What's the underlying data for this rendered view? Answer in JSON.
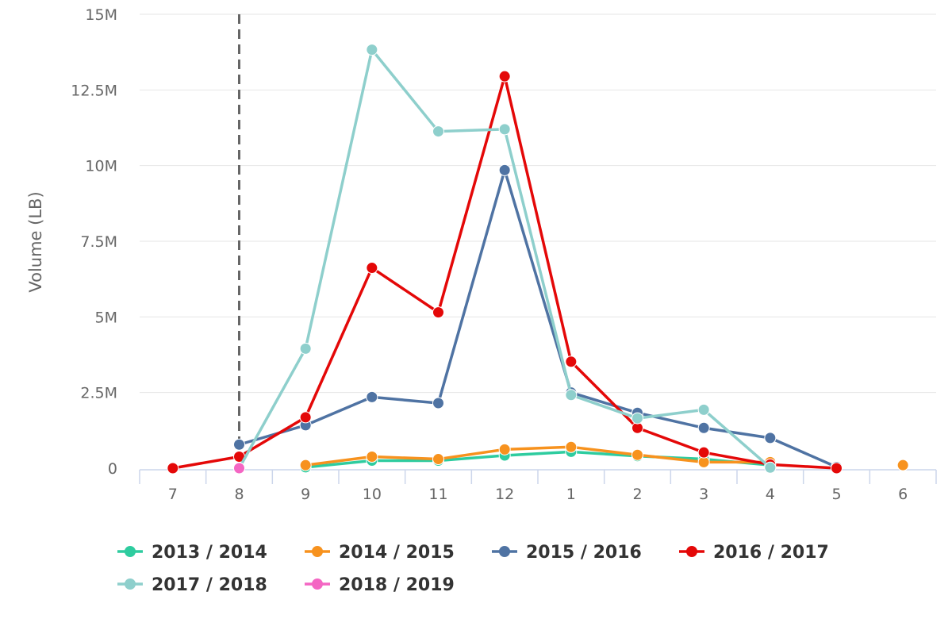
{
  "chart_data": {
    "type": "line",
    "xlabel": "",
    "ylabel": "Volume (LB)",
    "categories": [
      "7",
      "8",
      "9",
      "10",
      "11",
      "12",
      "1",
      "2",
      "3",
      "4",
      "5",
      "6"
    ],
    "ylim": [
      0,
      15000000
    ],
    "yticks": [
      0,
      2500000,
      5000000,
      7500000,
      10000000,
      12500000,
      15000000
    ],
    "ytick_labels": [
      "0",
      "2.5M",
      "5M",
      "7.5M",
      "10M",
      "12.5M",
      "15M"
    ],
    "grid": true,
    "legend_position": "bottom",
    "marker_category": "8",
    "series": [
      {
        "name": "2013 / 2014",
        "color": "#2ecc9f",
        "values": [
          null,
          null,
          30000,
          250000,
          250000,
          420000,
          540000,
          400000,
          300000,
          100000,
          null,
          null
        ]
      },
      {
        "name": "2014 / 2015",
        "color": "#f7921e",
        "values": [
          null,
          null,
          100000,
          380000,
          300000,
          620000,
          700000,
          440000,
          200000,
          200000,
          null,
          100000
        ]
      },
      {
        "name": "2015 / 2016",
        "color": "#4f73a3",
        "values": [
          null,
          780000,
          1420000,
          2350000,
          2150000,
          9850000,
          2500000,
          1830000,
          1330000,
          1000000,
          40000,
          null
        ]
      },
      {
        "name": "2016 / 2017",
        "color": "#e40808",
        "values": [
          0,
          380000,
          1680000,
          6620000,
          5150000,
          12950000,
          3520000,
          1330000,
          520000,
          120000,
          0,
          null
        ]
      },
      {
        "name": "2017 / 2018",
        "color": "#8ecfcc",
        "values": [
          null,
          0,
          3950000,
          13830000,
          11130000,
          11200000,
          2420000,
          1650000,
          1930000,
          20000,
          null,
          null
        ]
      },
      {
        "name": "2018 / 2019",
        "color": "#f466c3",
        "values": [
          null,
          0,
          null,
          null,
          null,
          null,
          null,
          null,
          null,
          null,
          null,
          null
        ]
      }
    ]
  }
}
